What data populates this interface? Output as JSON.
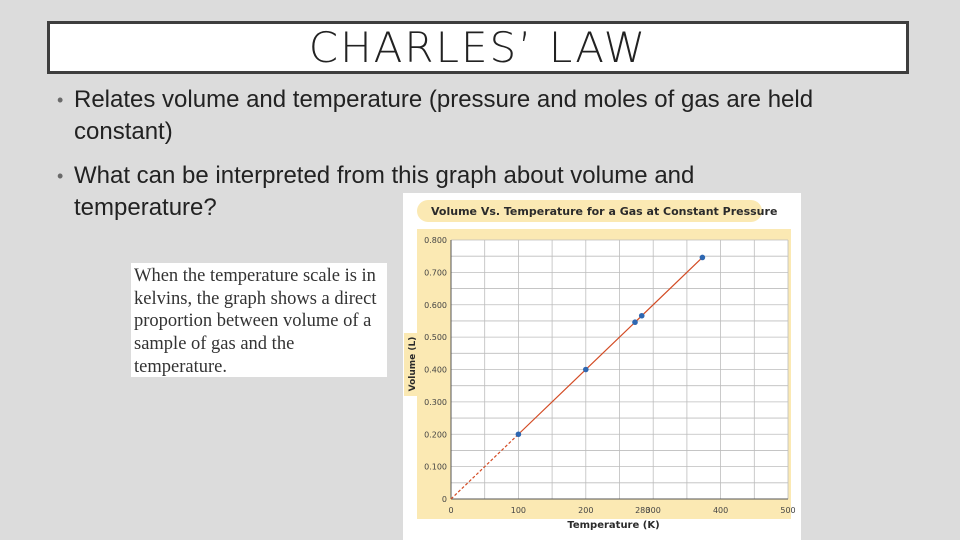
{
  "slide": {
    "title": "CHARLES’ LAW",
    "bullets": [
      "Relates volume and temperature (pressure and moles of gas are held constant)",
      "What can be interpreted from this graph about volume and temperature?"
    ],
    "bullet_glyph": "•",
    "callout": "When the temperature scale is in kelvins, the graph shows a direct proportion between volume of a sample of gas and the temperature."
  },
  "colors": {
    "background": "#dcdcdc",
    "title_border": "#3e3e3e",
    "chart_frame": "#fbe9b3",
    "point": "#2e67b1",
    "line": "#d34b24"
  },
  "chart_data": {
    "type": "scatter",
    "title": "Volume Vs. Temperature for a Gas at Constant Pressure",
    "xlabel": "Temperature (K)",
    "ylabel": "Volume (L)",
    "xlim": [
      0,
      500
    ],
    "ylim": [
      0,
      0.8
    ],
    "x_ticks": [
      "0",
      "100",
      "200",
      "300",
      "400",
      "500"
    ],
    "y_ticks": [
      "0",
      "0.100",
      "0.200",
      "0.300",
      "0.400",
      "0.500",
      "0.600",
      "0.700",
      "0.800"
    ],
    "extra_x_tick": "280",
    "grid": true,
    "points": [
      {
        "x": 100,
        "y": 0.2
      },
      {
        "x": 200,
        "y": 0.4
      },
      {
        "x": 273,
        "y": 0.546
      },
      {
        "x": 283,
        "y": 0.566
      },
      {
        "x": 373,
        "y": 0.746
      }
    ],
    "fit_line": {
      "solid_from_x": 100,
      "to_x": 373,
      "dashed_from_x": 0,
      "slope": 0.002
    }
  }
}
